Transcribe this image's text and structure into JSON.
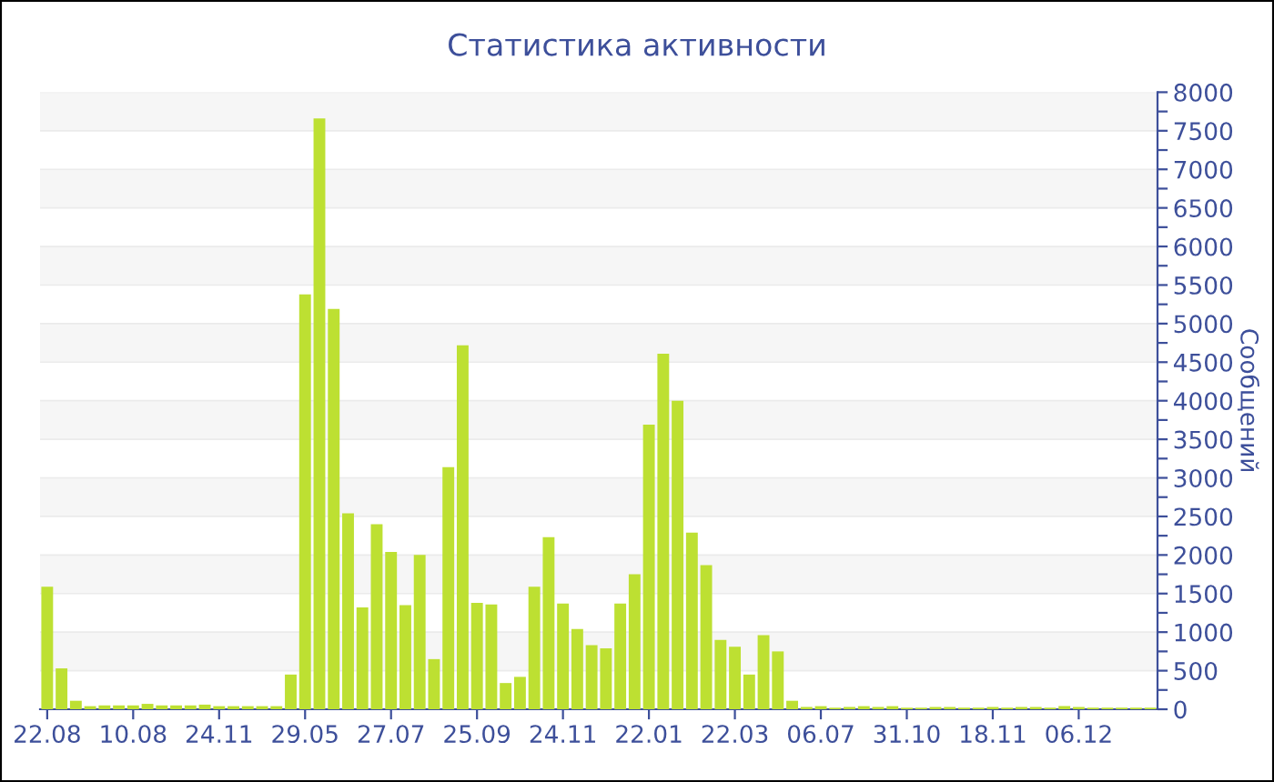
{
  "chart_data": {
    "type": "bar",
    "title": "Статистика активности",
    "ylabel": "Сообщений",
    "categories": [
      "22.08",
      null,
      null,
      null,
      null,
      null,
      "10.08",
      null,
      null,
      null,
      null,
      null,
      "24.11",
      null,
      null,
      null,
      null,
      null,
      "29.05",
      null,
      null,
      null,
      null,
      null,
      "27.07",
      null,
      null,
      null,
      null,
      null,
      "25.09",
      null,
      null,
      null,
      null,
      null,
      "24.11",
      null,
      null,
      null,
      null,
      null,
      "22.01",
      null,
      null,
      null,
      null,
      null,
      "22.03",
      null,
      null,
      null,
      null,
      null,
      "06.07",
      null,
      null,
      null,
      null,
      null,
      "31.10",
      null,
      null,
      null,
      null,
      null,
      "18.11",
      null,
      null,
      null,
      null,
      null,
      "06.12",
      null,
      null,
      null,
      null,
      null
    ],
    "values": [
      1590,
      530,
      110,
      40,
      50,
      50,
      50,
      70,
      50,
      50,
      50,
      60,
      40,
      40,
      40,
      40,
      40,
      450,
      5380,
      7660,
      5190,
      2540,
      1320,
      2400,
      2040,
      1350,
      2000,
      650,
      3140,
      4720,
      1380,
      1360,
      340,
      420,
      1590,
      2230,
      1370,
      1040,
      830,
      790,
      1370,
      1750,
      3690,
      4610,
      4000,
      2290,
      1870,
      900,
      810,
      450,
      960,
      750,
      110,
      30,
      40,
      20,
      30,
      40,
      30,
      40,
      20,
      20,
      30,
      30,
      20,
      20,
      30,
      20,
      30,
      30,
      20,
      40,
      30,
      20,
      20,
      20,
      20,
      20
    ],
    "color": "#bde032",
    "ylim": [
      0,
      8000
    ],
    "yticks": [
      0,
      {
        "value": 250,
        "label": null
      },
      500,
      {
        "value": 750,
        "label": null
      },
      1000,
      {
        "value": 1250,
        "label": null
      },
      1500,
      {
        "value": 1750,
        "label": null
      },
      2000,
      {
        "value": 2250,
        "label": null
      },
      2500,
      {
        "value": 2750,
        "label": null
      },
      3000,
      {
        "value": 3250,
        "label": null
      },
      3500,
      {
        "value": 3750,
        "label": null
      },
      4000,
      {
        "value": 4250,
        "label": null
      },
      4500,
      {
        "value": 4750,
        "label": null
      },
      5000,
      {
        "value": 5250,
        "label": null
      },
      5500,
      {
        "value": 5750,
        "label": null
      },
      6000,
      {
        "value": 6250,
        "label": null
      },
      6500,
      {
        "value": 6750,
        "label": null
      },
      7000,
      {
        "value": 7250,
        "label": null
      },
      7500,
      {
        "value": 7750,
        "label": null
      },
      8000
    ],
    "grid": "y",
    "legend": false
  }
}
